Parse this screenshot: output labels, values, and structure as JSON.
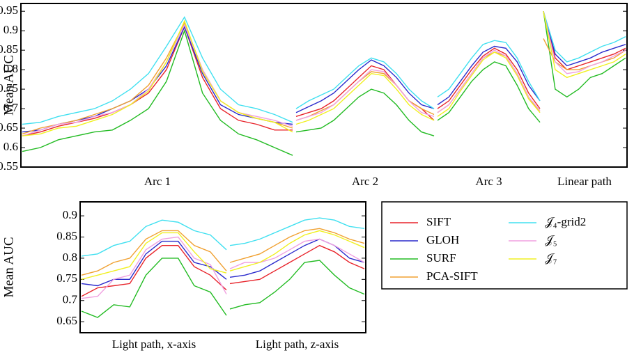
{
  "chart_data": {
    "type": "line",
    "ylabel": "Mean AUC",
    "series": [
      {
        "name": "SIFT",
        "color": "#e8242b"
      },
      {
        "name": "GLOH",
        "color": "#2a2acc"
      },
      {
        "name": "SURF",
        "color": "#22bb22"
      },
      {
        "name": "PCA-SIFT",
        "color": "#f0a030"
      },
      {
        "name": "𝒥₄-grid2",
        "color": "#40e0f0"
      },
      {
        "name": "𝒥₅",
        "color": "#f0a0e0"
      },
      {
        "name": "𝒥₇",
        "color": "#f0f020"
      }
    ],
    "charts": [
      {
        "ylim": [
          0.55,
          0.97
        ],
        "yticks": [
          0.55,
          0.6,
          0.65,
          0.7,
          0.75,
          0.8,
          0.85,
          0.9,
          0.95
        ],
        "panels": [
          {
            "label": "Arc 1",
            "values": [
              [
                0.63,
                0.64,
                0.655,
                0.665,
                0.675,
                0.69,
                0.71,
                0.74,
                0.8,
                0.91,
                0.78,
                0.7,
                0.67,
                0.66,
                0.645,
                0.645
              ],
              [
                0.64,
                0.645,
                0.66,
                0.67,
                0.68,
                0.7,
                0.72,
                0.75,
                0.81,
                0.91,
                0.79,
                0.71,
                0.685,
                0.675,
                0.665,
                0.66
              ],
              [
                0.59,
                0.6,
                0.62,
                0.63,
                0.64,
                0.645,
                0.67,
                0.7,
                0.77,
                0.9,
                0.74,
                0.67,
                0.635,
                0.62,
                0.6,
                0.58
              ],
              [
                0.635,
                0.65,
                0.66,
                0.67,
                0.685,
                0.7,
                0.72,
                0.76,
                0.83,
                0.92,
                0.8,
                0.72,
                0.69,
                0.675,
                0.665,
                0.65
              ],
              [
                0.66,
                0.665,
                0.68,
                0.69,
                0.7,
                0.72,
                0.75,
                0.79,
                0.86,
                0.935,
                0.83,
                0.75,
                0.71,
                0.7,
                0.685,
                0.665
              ],
              [
                0.63,
                0.645,
                0.66,
                0.665,
                0.68,
                0.69,
                0.71,
                0.75,
                0.82,
                0.915,
                0.8,
                0.72,
                0.69,
                0.68,
                0.67,
                0.655
              ],
              [
                0.63,
                0.635,
                0.65,
                0.655,
                0.67,
                0.685,
                0.71,
                0.745,
                0.82,
                0.925,
                0.795,
                0.72,
                0.69,
                0.675,
                0.665,
                0.64
              ]
            ]
          },
          {
            "label": "Arc 2",
            "values": [
              [
                0.68,
                0.69,
                0.7,
                0.72,
                0.75,
                0.78,
                0.81,
                0.8,
                0.76,
                0.72,
                0.7,
                0.67
              ],
              [
                0.69,
                0.705,
                0.72,
                0.74,
                0.77,
                0.8,
                0.825,
                0.81,
                0.78,
                0.74,
                0.71,
                0.7
              ],
              [
                0.64,
                0.645,
                0.65,
                0.67,
                0.7,
                0.73,
                0.75,
                0.74,
                0.71,
                0.67,
                0.64,
                0.63
              ],
              [
                0.67,
                0.68,
                0.695,
                0.71,
                0.74,
                0.77,
                0.795,
                0.79,
                0.76,
                0.72,
                0.7,
                0.685
              ],
              [
                0.7,
                0.72,
                0.735,
                0.75,
                0.78,
                0.81,
                0.83,
                0.82,
                0.79,
                0.75,
                0.72,
                0.7
              ],
              [
                0.67,
                0.68,
                0.69,
                0.71,
                0.74,
                0.77,
                0.8,
                0.795,
                0.76,
                0.72,
                0.69,
                0.68
              ],
              [
                0.66,
                0.67,
                0.685,
                0.7,
                0.73,
                0.76,
                0.79,
                0.785,
                0.75,
                0.71,
                0.685,
                0.67
              ]
            ]
          },
          {
            "label": "Arc 3",
            "values": [
              [
                0.7,
                0.72,
                0.76,
                0.8,
                0.835,
                0.855,
                0.84,
                0.8,
                0.74,
                0.7
              ],
              [
                0.71,
                0.73,
                0.77,
                0.81,
                0.845,
                0.86,
                0.855,
                0.82,
                0.76,
                0.72
              ],
              [
                0.67,
                0.69,
                0.73,
                0.77,
                0.8,
                0.82,
                0.81,
                0.76,
                0.7,
                0.665
              ],
              [
                0.69,
                0.71,
                0.75,
                0.79,
                0.83,
                0.845,
                0.835,
                0.79,
                0.73,
                0.69
              ],
              [
                0.73,
                0.75,
                0.79,
                0.83,
                0.865,
                0.875,
                0.87,
                0.83,
                0.77,
                0.72
              ],
              [
                0.69,
                0.71,
                0.75,
                0.79,
                0.83,
                0.85,
                0.835,
                0.79,
                0.73,
                0.695
              ],
              [
                0.68,
                0.7,
                0.745,
                0.785,
                0.825,
                0.845,
                0.83,
                0.785,
                0.725,
                0.69
              ]
            ]
          },
          {
            "label": "Linear path",
            "values": [
              [
                0.95,
                0.83,
                0.8,
                0.81,
                0.82,
                0.83,
                0.84,
                0.855
              ],
              [
                0.95,
                0.84,
                0.81,
                0.82,
                0.83,
                0.845,
                0.855,
                0.865
              ],
              [
                0.95,
                0.75,
                0.73,
                0.75,
                0.78,
                0.79,
                0.81,
                0.83
              ],
              [
                0.88,
                0.82,
                0.8,
                0.8,
                0.81,
                0.82,
                0.83,
                0.85
              ],
              [
                0.95,
                0.85,
                0.82,
                0.83,
                0.845,
                0.86,
                0.87,
                0.885
              ],
              [
                0.95,
                0.82,
                0.79,
                0.795,
                0.81,
                0.82,
                0.835,
                0.85
              ],
              [
                0.95,
                0.8,
                0.78,
                0.79,
                0.8,
                0.81,
                0.82,
                0.84
              ]
            ]
          }
        ]
      },
      {
        "ylim": [
          0.624,
          0.933
        ],
        "yticks": [
          0.65,
          0.7,
          0.75,
          0.8,
          0.85,
          0.9
        ],
        "panels": [
          {
            "label": "Light path, x-axis",
            "values": [
              [
                0.71,
                0.73,
                0.735,
                0.74,
                0.8,
                0.83,
                0.83,
                0.78,
                0.76,
                0.725
              ],
              [
                0.74,
                0.735,
                0.75,
                0.75,
                0.81,
                0.84,
                0.84,
                0.79,
                0.78,
                0.75
              ],
              [
                0.675,
                0.66,
                0.69,
                0.685,
                0.76,
                0.8,
                0.8,
                0.735,
                0.72,
                0.665
              ],
              [
                0.76,
                0.77,
                0.79,
                0.8,
                0.845,
                0.865,
                0.865,
                0.83,
                0.815,
                0.77
              ],
              [
                0.805,
                0.81,
                0.83,
                0.84,
                0.875,
                0.89,
                0.885,
                0.865,
                0.855,
                0.82
              ],
              [
                0.705,
                0.71,
                0.75,
                0.76,
                0.82,
                0.845,
                0.85,
                0.8,
                0.785,
                0.715
              ],
              [
                0.75,
                0.76,
                0.77,
                0.78,
                0.835,
                0.86,
                0.86,
                0.815,
                0.775,
                0.765
              ]
            ]
          },
          {
            "label": "Light path, z-axis",
            "values": [
              [
                0.74,
                0.745,
                0.75,
                0.77,
                0.79,
                0.81,
                0.83,
                0.815,
                0.79,
                0.775
              ],
              [
                0.755,
                0.76,
                0.77,
                0.79,
                0.81,
                0.83,
                0.845,
                0.83,
                0.8,
                0.79
              ],
              [
                0.68,
                0.69,
                0.695,
                0.72,
                0.75,
                0.79,
                0.795,
                0.76,
                0.73,
                0.715
              ],
              [
                0.79,
                0.8,
                0.81,
                0.83,
                0.85,
                0.865,
                0.87,
                0.86,
                0.845,
                0.835
              ],
              [
                0.83,
                0.835,
                0.845,
                0.86,
                0.875,
                0.89,
                0.895,
                0.89,
                0.875,
                0.87
              ],
              [
                0.775,
                0.79,
                0.79,
                0.8,
                0.82,
                0.84,
                0.845,
                0.83,
                0.81,
                0.79
              ],
              [
                0.77,
                0.78,
                0.79,
                0.81,
                0.835,
                0.855,
                0.865,
                0.855,
                0.84,
                0.825
              ]
            ]
          }
        ]
      }
    ]
  }
}
